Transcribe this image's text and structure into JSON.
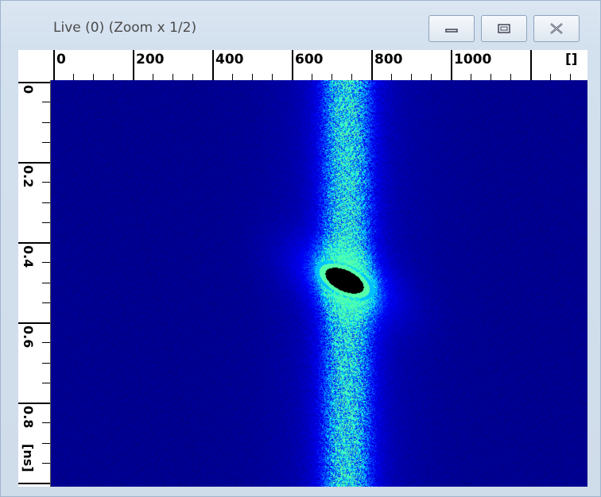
{
  "window": {
    "title": "Live (0) (Zoom x 1/2)",
    "buttons": [
      "minimize",
      "maximize",
      "close"
    ]
  },
  "x_axis": {
    "tick_labels": [
      "0",
      "200",
      "400",
      "600",
      "800",
      "1000"
    ],
    "unit_label": "[]"
  },
  "y_axis": {
    "tick_labels": [
      "0",
      "0.2",
      "0.4",
      "0.6",
      "0.8"
    ],
    "unit_label": "[ns]"
  },
  "image": {
    "colormap": "jet-like (dark blue background, cyan/green/yellow/red to black at saturation)",
    "background_color": "#070f5c",
    "description_features": {
      "vertical_band_center_x": 730,
      "spot_center_x": 720,
      "spot_center_y": 0.49
    }
  },
  "icons": {
    "minimize": "minimize-icon",
    "maximize": "maximize-icon",
    "close": "close-icon"
  }
}
